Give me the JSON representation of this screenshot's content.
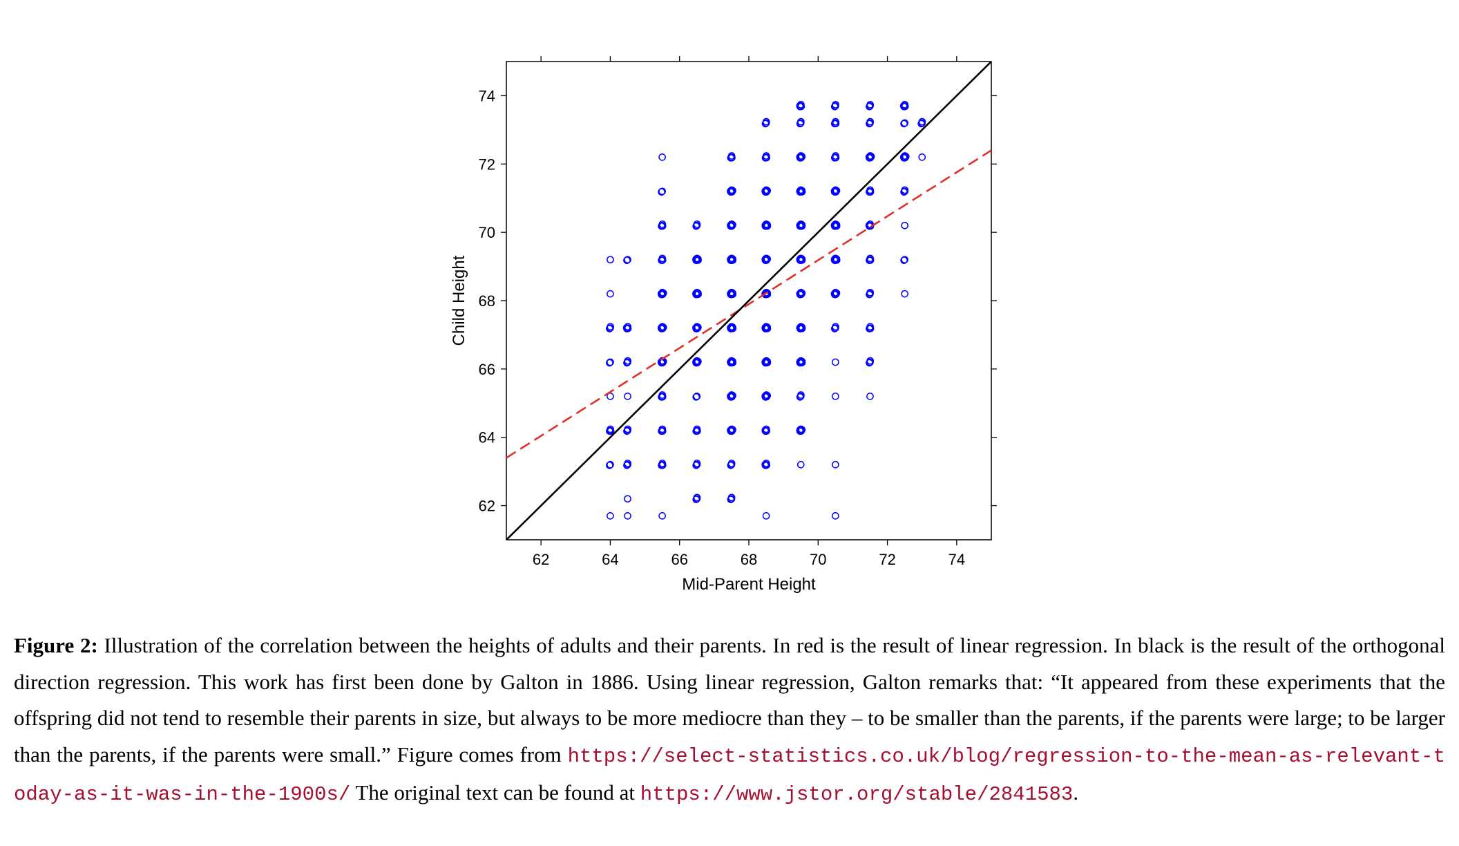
{
  "chart_data": {
    "type": "scatter",
    "xlabel": "Mid-Parent Height",
    "ylabel": "Child Height",
    "xlim": [
      61,
      75
    ],
    "ylim": [
      61,
      75
    ],
    "xticks": [
      62,
      64,
      66,
      68,
      70,
      72,
      74
    ],
    "yticks": [
      62,
      64,
      66,
      68,
      70,
      72,
      74
    ],
    "marker_color": "#0000ff",
    "points": [
      [
        64,
        61.7,
        1
      ],
      [
        64.5,
        61.7,
        1
      ],
      [
        65.5,
        61.7,
        1
      ],
      [
        68.5,
        61.7,
        1
      ],
      [
        70.5,
        61.7,
        1
      ],
      [
        64.5,
        62.2,
        1
      ],
      [
        66.5,
        62.2,
        3
      ],
      [
        67.5,
        62.2,
        3
      ],
      [
        64,
        63.2,
        2
      ],
      [
        64.5,
        63.2,
        3
      ],
      [
        65.5,
        63.2,
        4
      ],
      [
        66.5,
        63.2,
        3
      ],
      [
        67.5,
        63.2,
        3
      ],
      [
        68.5,
        63.2,
        5
      ],
      [
        69.5,
        63.2,
        1
      ],
      [
        70.5,
        63.2,
        1
      ],
      [
        64,
        64.2,
        4
      ],
      [
        64.5,
        64.2,
        3
      ],
      [
        65.5,
        64.2,
        4
      ],
      [
        66.5,
        64.2,
        4
      ],
      [
        67.5,
        64.2,
        6
      ],
      [
        68.5,
        64.2,
        5
      ],
      [
        69.5,
        64.2,
        8
      ],
      [
        64,
        65.2,
        1
      ],
      [
        64.5,
        65.2,
        1
      ],
      [
        65.5,
        65.2,
        4
      ],
      [
        66.5,
        65.2,
        2
      ],
      [
        67.5,
        65.2,
        6
      ],
      [
        68.5,
        65.2,
        6
      ],
      [
        69.5,
        65.2,
        3
      ],
      [
        70.5,
        65.2,
        1
      ],
      [
        71.5,
        65.2,
        1
      ],
      [
        64,
        66.2,
        2
      ],
      [
        64.5,
        66.2,
        3
      ],
      [
        65.5,
        66.2,
        6
      ],
      [
        66.5,
        66.2,
        8
      ],
      [
        67.5,
        66.2,
        10
      ],
      [
        68.5,
        66.2,
        10
      ],
      [
        69.5,
        66.2,
        10
      ],
      [
        70.5,
        66.2,
        1
      ],
      [
        71.5,
        66.2,
        3
      ],
      [
        64,
        67.2,
        3
      ],
      [
        64.5,
        67.2,
        5
      ],
      [
        65.5,
        67.2,
        6
      ],
      [
        66.5,
        67.2,
        7
      ],
      [
        67.5,
        67.2,
        9
      ],
      [
        68.5,
        67.2,
        9
      ],
      [
        69.5,
        67.2,
        10
      ],
      [
        70.5,
        67.2,
        3
      ],
      [
        71.5,
        67.2,
        4
      ],
      [
        64,
        68.2,
        1
      ],
      [
        65.5,
        68.2,
        7
      ],
      [
        66.5,
        68.2,
        10
      ],
      [
        67.5,
        68.2,
        10
      ],
      [
        68.5,
        68.2,
        10
      ],
      [
        69.5,
        68.2,
        7
      ],
      [
        70.5,
        68.2,
        6
      ],
      [
        71.5,
        68.2,
        3
      ],
      [
        72.5,
        68.2,
        1
      ],
      [
        64,
        69.2,
        1
      ],
      [
        64.5,
        69.2,
        2
      ],
      [
        65.5,
        69.2,
        4
      ],
      [
        66.5,
        69.2,
        9
      ],
      [
        67.5,
        69.2,
        9
      ],
      [
        68.5,
        69.2,
        8
      ],
      [
        69.5,
        69.2,
        10
      ],
      [
        70.5,
        69.2,
        9
      ],
      [
        71.5,
        69.2,
        4
      ],
      [
        72.5,
        69.2,
        2
      ],
      [
        65.5,
        70.2,
        4
      ],
      [
        66.5,
        70.2,
        3
      ],
      [
        67.5,
        70.2,
        8
      ],
      [
        68.5,
        70.2,
        10
      ],
      [
        69.5,
        70.2,
        10
      ],
      [
        70.5,
        70.2,
        10
      ],
      [
        71.5,
        70.2,
        5
      ],
      [
        72.5,
        70.2,
        1
      ],
      [
        65.5,
        71.2,
        2
      ],
      [
        67.5,
        71.2,
        7
      ],
      [
        68.5,
        71.2,
        7
      ],
      [
        69.5,
        71.2,
        9
      ],
      [
        70.5,
        71.2,
        6
      ],
      [
        71.5,
        71.2,
        4
      ],
      [
        72.5,
        71.2,
        3
      ],
      [
        65.5,
        72.2,
        1
      ],
      [
        67.5,
        72.2,
        4
      ],
      [
        68.5,
        72.2,
        4
      ],
      [
        69.5,
        72.2,
        7
      ],
      [
        70.5,
        72.2,
        4
      ],
      [
        71.5,
        72.2,
        7
      ],
      [
        72.5,
        72.2,
        7
      ],
      [
        73,
        72.2,
        1
      ],
      [
        68.5,
        73.2,
        3
      ],
      [
        69.5,
        73.2,
        3
      ],
      [
        70.5,
        73.2,
        4
      ],
      [
        71.5,
        73.2,
        3
      ],
      [
        72.5,
        73.2,
        2
      ],
      [
        73,
        73.2,
        3
      ],
      [
        69.5,
        73.7,
        5
      ],
      [
        70.5,
        73.7,
        3
      ],
      [
        71.5,
        73.7,
        3
      ],
      [
        72.5,
        73.7,
        5
      ]
    ],
    "lines": [
      {
        "kind": "linear regression",
        "color": "#e0302a",
        "style": "dashed",
        "from": [
          61,
          63.4
        ],
        "to": [
          75,
          72.4
        ]
      },
      {
        "kind": "orthogonal direction regression",
        "color": "#000000",
        "style": "solid",
        "from": [
          61,
          61
        ],
        "to": [
          75,
          75
        ]
      }
    ]
  },
  "caption": {
    "label": "Figure 2:",
    "text": "Illustration of the correlation between the heights of adults and their parents.  In red is the result of linear regression.  In black is the result of the orthogonal direction regression.  This work has first been done by Galton in 1886.  Using linear regression, Galton remarks that: “It appeared from these experiments that the offspring did not tend to resemble their parents in size, but always to be more mediocre than they – to be smaller than the parents, if the parents were large; to be larger than the parents, if the parents were small.”  Figure comes from ",
    "url1": "https://select-statistics.co.uk/blog/regression-to-the-mean-as-relevant-today-as-it-was-in-the-1900s/",
    "text2": " The original text can be found at ",
    "url2": "https://www.jstor.org/stable/2841583",
    "text3": "."
  }
}
